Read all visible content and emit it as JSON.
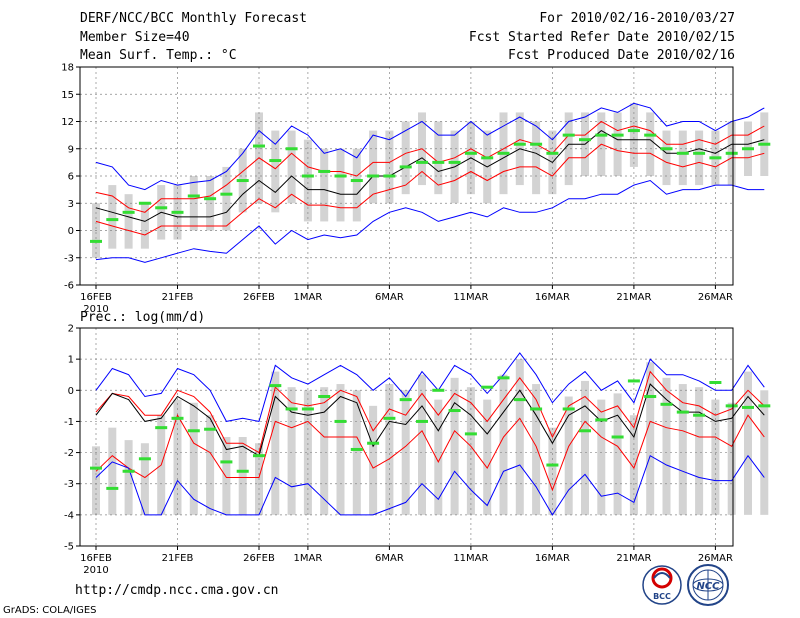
{
  "header": {
    "title": "DERF/NCC/BCC Monthly Forecast",
    "member_size": "Member Size=40",
    "variable": "Mean Surf. Temp.: °C",
    "period": "For 2010/02/16-2010/03/27",
    "started": "Fcst Started Refer Date 2010/02/15",
    "produced": "Fcst Produced Date 2010/02/16"
  },
  "footer": {
    "url": "http://cmdp.ncc.cma.gov.cn",
    "credit": "GrADS: COLA/IGES",
    "logo1_text": "BCC",
    "logo2_text": "NCC"
  },
  "colors": {
    "upper": "#0000ff",
    "band": "#ff0000",
    "mean": "#000000",
    "obs": "#33dd33",
    "box": "#d3d3d3"
  },
  "chart_data": [
    {
      "type": "line",
      "title": "Mean Surf. Temp.: °C",
      "x_tick_labels": [
        "16FEB",
        "21FEB",
        "26FEB",
        "1MAR",
        "6MAR",
        "11MAR",
        "16MAR",
        "21MAR",
        "26MAR"
      ],
      "x_tick_days": [
        0,
        5,
        10,
        13,
        18,
        23,
        28,
        33,
        38
      ],
      "year_label": "2010",
      "ylim": [
        -6,
        18
      ],
      "y_ticks": [
        -6,
        -3,
        0,
        3,
        6,
        9,
        12,
        15,
        18
      ],
      "series": [
        {
          "name": "max",
          "values": [
            7.5,
            7.0,
            5.0,
            4.5,
            5.5,
            5.0,
            5.3,
            5.5,
            6.5,
            8.5,
            11.0,
            9.5,
            11.5,
            10.5,
            8.5,
            9.0,
            8.0,
            10.5,
            10.0,
            11.0,
            12.0,
            10.5,
            10.5,
            12.0,
            10.5,
            11.5,
            12.5,
            11.5,
            10.0,
            12.0,
            12.5,
            13.5,
            13.0,
            14.0,
            13.5,
            11.5,
            12.0,
            12.0,
            11.0,
            12.0,
            12.5,
            13.5
          ]
        },
        {
          "name": "upper",
          "values": [
            4.2,
            3.8,
            2.5,
            2.0,
            3.5,
            3.5,
            3.5,
            3.8,
            5.0,
            6.5,
            8.0,
            6.8,
            8.5,
            7.0,
            6.5,
            6.5,
            6.0,
            7.5,
            7.5,
            8.5,
            9.0,
            7.5,
            8.0,
            9.0,
            8.0,
            9.0,
            10.0,
            9.5,
            8.5,
            10.5,
            10.5,
            12.0,
            11.0,
            11.5,
            11.0,
            9.5,
            9.5,
            10.0,
            9.5,
            10.5,
            10.5,
            11.5
          ]
        },
        {
          "name": "mean",
          "values": [
            2.5,
            2.0,
            1.5,
            1.0,
            2.0,
            1.5,
            1.5,
            1.5,
            2.0,
            4.0,
            5.5,
            4.2,
            6.0,
            4.5,
            4.5,
            4.0,
            4.0,
            6.0,
            6.0,
            7.0,
            8.0,
            6.5,
            7.0,
            8.0,
            7.0,
            8.0,
            9.0,
            8.5,
            7.5,
            9.5,
            9.5,
            11.0,
            10.0,
            10.0,
            10.0,
            8.5,
            8.5,
            9.0,
            8.5,
            9.5,
            9.5,
            10.0
          ]
        },
        {
          "name": "lower",
          "values": [
            1.0,
            0.5,
            0.0,
            -0.5,
            0.5,
            0.5,
            0.5,
            0.5,
            0.5,
            2.0,
            3.5,
            2.5,
            4.0,
            2.8,
            2.8,
            2.5,
            2.5,
            4.0,
            4.5,
            5.0,
            6.5,
            5.0,
            5.5,
            6.5,
            5.5,
            6.5,
            7.0,
            7.0,
            6.0,
            8.0,
            8.0,
            9.5,
            8.8,
            8.5,
            8.5,
            7.5,
            7.0,
            7.5,
            7.0,
            8.0,
            8.0,
            8.5
          ]
        },
        {
          "name": "min",
          "values": [
            -3.2,
            -3.0,
            -3.0,
            -3.5,
            -3.0,
            -2.5,
            -2.0,
            -2.3,
            -2.5,
            -1.0,
            0.5,
            -1.5,
            0.0,
            -1.0,
            -0.5,
            -0.8,
            -0.5,
            1.0,
            2.0,
            2.5,
            2.0,
            1.0,
            1.5,
            2.0,
            1.5,
            2.5,
            2.0,
            2.0,
            2.5,
            3.5,
            3.5,
            4.0,
            4.0,
            5.0,
            5.5,
            4.0,
            4.5,
            4.5,
            5.0,
            5.0,
            4.5,
            4.5
          ]
        },
        {
          "name": "observed",
          "values": [
            -1.2,
            1.2,
            2.0,
            3.0,
            2.5,
            2.0,
            3.8,
            3.5,
            4.0,
            5.5,
            9.3,
            7.7,
            9.0,
            6.0,
            6.5,
            6.0,
            5.5,
            6.0,
            6.0,
            7.0,
            7.5,
            7.5,
            7.5,
            8.5,
            8.0,
            8.5,
            9.5,
            9.5,
            8.5,
            10.5,
            10.0,
            10.5,
            10.5,
            11.0,
            10.5,
            9.0,
            8.5,
            8.5,
            8.0,
            8.5,
            9.0,
            9.5
          ]
        }
      ],
      "box_range": [
        [
          -3,
          3
        ],
        [
          -2,
          5
        ],
        [
          -2,
          4
        ],
        [
          -2,
          3
        ],
        [
          -1,
          5
        ],
        [
          -1,
          5
        ],
        [
          0,
          6
        ],
        [
          0,
          6
        ],
        [
          0,
          7
        ],
        [
          2,
          9
        ],
        [
          3,
          13
        ],
        [
          2,
          11
        ],
        [
          3,
          11
        ],
        [
          1,
          10
        ],
        [
          1,
          9
        ],
        [
          1,
          9
        ],
        [
          1,
          9
        ],
        [
          3,
          11
        ],
        [
          3,
          11
        ],
        [
          4,
          12
        ],
        [
          5,
          13
        ],
        [
          4,
          12
        ],
        [
          3,
          11
        ],
        [
          4,
          12
        ],
        [
          3,
          11
        ],
        [
          4,
          13
        ],
        [
          5,
          13
        ],
        [
          4,
          12
        ],
        [
          4,
          11
        ],
        [
          5,
          13
        ],
        [
          6,
          13
        ],
        [
          6,
          13
        ],
        [
          6,
          13
        ],
        [
          7,
          14
        ],
        [
          6,
          13
        ],
        [
          5,
          11
        ],
        [
          5,
          11
        ],
        [
          5,
          11
        ],
        [
          5,
          11
        ],
        [
          5,
          12
        ],
        [
          6,
          12
        ],
        [
          6,
          13
        ]
      ]
    },
    {
      "type": "line",
      "title": "Prec.: log(mm/d)",
      "x_tick_labels": [
        "16FEB",
        "21FEB",
        "26FEB",
        "1MAR",
        "6MAR",
        "11MAR",
        "16MAR",
        "21MAR",
        "26MAR"
      ],
      "x_tick_days": [
        0,
        5,
        10,
        13,
        18,
        23,
        28,
        33,
        38
      ],
      "year_label": "2010",
      "ylim": [
        -5,
        2
      ],
      "y_ticks": [
        -5,
        -4,
        -3,
        -2,
        -1,
        0,
        1,
        2
      ],
      "series": [
        {
          "name": "max",
          "values": [
            0.0,
            0.7,
            0.5,
            -0.2,
            -0.1,
            0.7,
            0.5,
            0.0,
            -1.0,
            -0.9,
            -1.0,
            0.8,
            0.4,
            0.2,
            0.5,
            0.8,
            0.5,
            0.0,
            0.4,
            -0.2,
            0.6,
            0.0,
            0.8,
            0.5,
            -0.1,
            0.5,
            1.2,
            0.5,
            -0.4,
            0.2,
            0.6,
            0.0,
            0.3,
            -0.4,
            1.0,
            0.5,
            0.5,
            0.3,
            0.0,
            0.0,
            0.8,
            0.1
          ]
        },
        {
          "name": "upper",
          "values": [
            -0.7,
            -0.1,
            -0.2,
            -0.8,
            -0.8,
            0.0,
            -0.2,
            -0.7,
            -1.7,
            -1.7,
            -2.0,
            0.1,
            -0.4,
            -0.5,
            -0.4,
            0.0,
            -0.2,
            -1.3,
            -0.6,
            -0.8,
            -0.1,
            -0.8,
            -0.1,
            -0.4,
            -1.0,
            -0.3,
            0.4,
            -0.3,
            -1.5,
            -0.5,
            -0.2,
            -0.7,
            -0.5,
            -1.2,
            0.6,
            0.0,
            -0.4,
            -0.5,
            -0.8,
            -0.6,
            0.0,
            -0.5
          ]
        },
        {
          "name": "mean",
          "values": [
            -0.8,
            -0.1,
            -0.3,
            -1.0,
            -0.9,
            -0.2,
            -0.5,
            -0.9,
            -1.9,
            -1.8,
            -2.1,
            -0.2,
            -0.7,
            -0.8,
            -0.7,
            -0.2,
            -0.4,
            -1.8,
            -1.0,
            -1.1,
            -0.5,
            -1.3,
            -0.4,
            -0.8,
            -1.4,
            -0.7,
            0.0,
            -0.8,
            -1.7,
            -0.8,
            -0.5,
            -1.0,
            -0.8,
            -1.5,
            0.2,
            -0.3,
            -0.7,
            -0.7,
            -1.0,
            -0.9,
            -0.2,
            -0.8
          ]
        },
        {
          "name": "lower",
          "values": [
            -2.6,
            -2.1,
            -2.5,
            -2.8,
            -2.4,
            -0.8,
            -1.7,
            -2.0,
            -2.8,
            -2.8,
            -2.8,
            -1.0,
            -1.2,
            -1.0,
            -1.5,
            -1.5,
            -1.5,
            -2.5,
            -2.2,
            -1.8,
            -1.3,
            -2.3,
            -1.3,
            -1.8,
            -2.5,
            -1.5,
            -0.9,
            -1.8,
            -3.2,
            -1.8,
            -1.0,
            -1.5,
            -1.8,
            -2.5,
            -1.0,
            -1.2,
            -1.3,
            -1.5,
            -1.5,
            -1.8,
            -0.8,
            -1.5
          ]
        },
        {
          "name": "min",
          "values": [
            -2.8,
            -2.3,
            -2.5,
            -4.0,
            -4.0,
            -2.9,
            -3.5,
            -3.8,
            -4.0,
            -4.0,
            -4.0,
            -2.8,
            -3.1,
            -3.0,
            -3.5,
            -4.0,
            -4.0,
            -4.0,
            -3.8,
            -3.6,
            -3.0,
            -3.5,
            -2.6,
            -3.2,
            -3.7,
            -2.6,
            -2.4,
            -3.1,
            -4.0,
            -3.2,
            -2.7,
            -3.4,
            -3.3,
            -3.6,
            -2.1,
            -2.4,
            -2.6,
            -2.8,
            -2.9,
            -2.9,
            -2.1,
            -2.8
          ]
        },
        {
          "name": "observed",
          "values": [
            -2.5,
            -3.15,
            -2.6,
            -2.2,
            -1.2,
            -0.9,
            -1.3,
            -1.25,
            -2.3,
            -2.6,
            -2.1,
            0.15,
            -0.6,
            -0.6,
            -0.2,
            -1.0,
            -1.9,
            -1.7,
            -0.9,
            -0.3,
            -1.0,
            0.0,
            -0.65,
            -1.4,
            0.1,
            0.4,
            -0.3,
            -0.6,
            -2.4,
            -0.6,
            -1.3,
            -0.95,
            -1.5,
            0.3,
            -0.2,
            -0.45,
            -0.7,
            -0.8,
            0.25,
            -0.5,
            -0.55,
            -0.5
          ]
        }
      ],
      "box_range": [
        [
          -4,
          -1.8
        ],
        [
          -4,
          -1.2
        ],
        [
          -4,
          -1.6
        ],
        [
          -4,
          -1.7
        ],
        [
          -4,
          -0.8
        ],
        [
          -4,
          -0.3
        ],
        [
          -4,
          -0.4
        ],
        [
          -4,
          -0.8
        ],
        [
          -4,
          -1.5
        ],
        [
          -4,
          -1.5
        ],
        [
          -4,
          -1.7
        ],
        [
          -4,
          0.6
        ],
        [
          -4,
          0.1
        ],
        [
          -4,
          0.0
        ],
        [
          -4,
          0.1
        ],
        [
          -4,
          0.2
        ],
        [
          -4,
          0.0
        ],
        [
          -4,
          -0.5
        ],
        [
          -4,
          0.2
        ],
        [
          -4,
          0.0
        ],
        [
          -4,
          0.5
        ],
        [
          -4,
          -0.3
        ],
        [
          -4,
          0.4
        ],
        [
          -4,
          0.1
        ],
        [
          -4,
          -0.3
        ],
        [
          -4,
          0.5
        ],
        [
          -4,
          1.0
        ],
        [
          -4,
          0.2
        ],
        [
          -4,
          -1.2
        ],
        [
          -4,
          -0.2
        ],
        [
          -4,
          0.3
        ],
        [
          -4,
          -0.3
        ],
        [
          -4,
          -0.1
        ],
        [
          -4,
          -0.8
        ],
        [
          -4,
          0.9
        ],
        [
          -4,
          0.4
        ],
        [
          -4,
          0.2
        ],
        [
          -4,
          0.1
        ],
        [
          -4,
          -0.3
        ],
        [
          -4,
          -0.4
        ],
        [
          -4,
          0.6
        ],
        [
          -4,
          0.0
        ]
      ]
    }
  ]
}
